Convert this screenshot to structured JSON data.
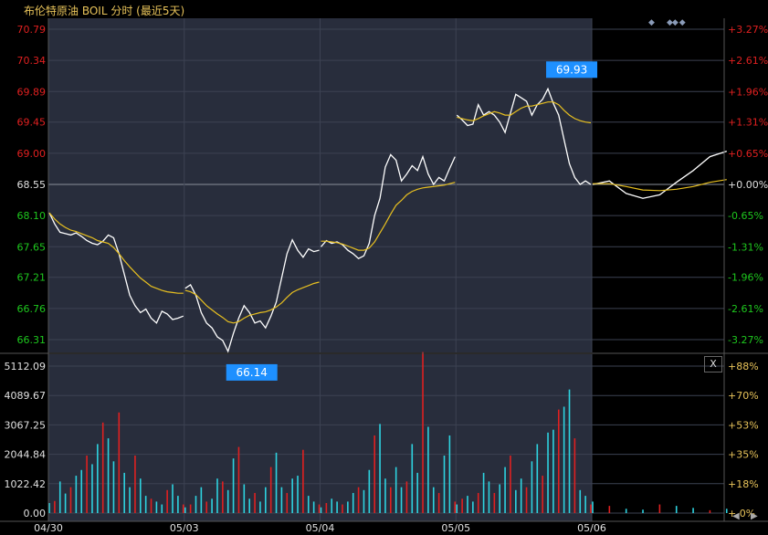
{
  "header": {
    "title": "布伦特原油 BOIL 分时 (最近5天)",
    "nav_left": "◆",
    "nav_right": "◆◆ ◆"
  },
  "controls": {
    "close": "X",
    "scroll_left": "◀",
    "scroll_right": "▶"
  },
  "chart_data": {
    "type": "line",
    "title": "布伦特原油 BOIL 分时 (最近5天)",
    "price_axis": {
      "ticks": [
        70.79,
        70.34,
        69.89,
        69.45,
        69.0,
        68.55,
        68.1,
        67.65,
        67.21,
        66.76,
        66.31
      ],
      "tick_labels": [
        "70.79",
        "70.34",
        "69.89",
        "69.45",
        "69.00",
        "68.55",
        "68.10",
        "67.65",
        "67.21",
        "66.76",
        "66.31"
      ],
      "pct_labels": [
        "+3.27%",
        "+2.61%",
        "+1.96%",
        "+1.31%",
        "+0.65%",
        "+0.00%",
        "-0.65%",
        "-1.31%",
        "-1.96%",
        "-2.61%",
        "-3.27%"
      ],
      "prev_close": 68.55,
      "ylim": [
        66.31,
        70.79
      ]
    },
    "volume_axis": {
      "ticks": [
        5112.09,
        4089.67,
        3067.25,
        2044.84,
        1022.42,
        0.0
      ],
      "tick_labels": [
        "5112.09",
        "4089.67",
        "3067.25",
        "2044.84",
        "1022.42",
        "0.00"
      ],
      "pct_labels": [
        "+88%",
        "+70%",
        "+53%",
        "+35%",
        "+18%",
        "+ 0%"
      ],
      "ylim": [
        0,
        5112.09
      ]
    },
    "days": [
      "04/30",
      "05/03",
      "05/04",
      "05/05",
      "05/06"
    ],
    "annotations": [
      {
        "label": "69.93",
        "day": 3,
        "value": 69.93
      },
      {
        "label": "66.14",
        "day": 1,
        "value": 66.14
      }
    ],
    "series": [
      {
        "day": 0,
        "price": [
          68.14,
          67.98,
          67.86,
          67.84,
          67.82,
          67.85,
          67.8,
          67.74,
          67.7,
          67.68,
          67.73,
          67.82,
          67.78,
          67.55,
          67.25,
          66.95,
          66.8,
          66.7,
          66.75,
          66.62,
          66.55,
          66.72,
          66.68,
          66.6,
          66.62,
          66.65
        ],
        "avg": [
          68.14,
          68.05,
          67.98,
          67.93,
          67.89,
          67.87,
          67.84,
          67.81,
          67.78,
          67.74,
          67.72,
          67.7,
          67.64,
          67.55,
          67.45,
          67.36,
          67.28,
          67.2,
          67.14,
          67.08,
          67.05,
          67.02,
          67.0,
          66.99,
          66.98,
          66.98
        ]
      },
      {
        "day": 1,
        "price": [
          67.05,
          67.1,
          66.95,
          66.7,
          66.55,
          66.48,
          66.35,
          66.3,
          66.14,
          66.4,
          66.62,
          66.8,
          66.7,
          66.55,
          66.58,
          66.48,
          66.65,
          66.85,
          67.2,
          67.55,
          67.75,
          67.6,
          67.5,
          67.62,
          67.58,
          67.6
        ],
        "avg": [
          67.02,
          67.0,
          66.96,
          66.88,
          66.8,
          66.74,
          66.68,
          66.63,
          66.57,
          66.55,
          66.57,
          66.62,
          66.66,
          66.68,
          66.7,
          66.71,
          66.74,
          66.78,
          66.84,
          66.92,
          66.99,
          67.03,
          67.06,
          67.09,
          67.12,
          67.14
        ]
      },
      {
        "day": 2,
        "price": [
          67.65,
          67.74,
          67.7,
          67.72,
          67.68,
          67.6,
          67.55,
          67.48,
          67.52,
          67.7,
          68.1,
          68.35,
          68.8,
          68.98,
          68.9,
          68.6,
          68.7,
          68.82,
          68.75,
          68.95,
          68.7,
          68.55,
          68.65,
          68.6,
          68.78,
          68.95
        ],
        "avg": [
          67.73,
          67.73,
          67.72,
          67.71,
          67.69,
          67.66,
          67.63,
          67.6,
          67.6,
          67.63,
          67.72,
          67.85,
          67.98,
          68.12,
          68.25,
          68.32,
          68.4,
          68.45,
          68.48,
          68.5,
          68.51,
          68.52,
          68.53,
          68.54,
          68.56,
          68.58
        ]
      },
      {
        "day": 3,
        "price": [
          69.55,
          69.48,
          69.4,
          69.42,
          69.7,
          69.55,
          69.6,
          69.55,
          69.45,
          69.3,
          69.58,
          69.85,
          69.8,
          69.75,
          69.55,
          69.7,
          69.78,
          69.93,
          69.72,
          69.55,
          69.2,
          68.85,
          68.65,
          68.55,
          68.6,
          68.55
        ],
        "avg": [
          69.52,
          69.5,
          69.48,
          69.47,
          69.5,
          69.54,
          69.57,
          69.6,
          69.58,
          69.55,
          69.55,
          69.6,
          69.65,
          69.68,
          69.68,
          69.7,
          69.72,
          69.74,
          69.74,
          69.7,
          69.62,
          69.55,
          69.5,
          69.47,
          69.45,
          69.44
        ]
      },
      {
        "day": 4,
        "price": [
          68.55,
          68.6,
          68.42,
          68.35,
          68.4,
          68.58,
          68.75,
          68.95,
          69.03
        ],
        "avg": [
          68.56,
          68.56,
          68.52,
          68.47,
          68.46,
          68.48,
          68.52,
          68.58,
          68.62
        ]
      }
    ],
    "volume": [
      [
        350,
        420,
        1100,
        680,
        900,
        1300,
        1500,
        2000,
        1700,
        2400,
        3150,
        2600,
        1800,
        3500,
        1400,
        900,
        2000,
        1200,
        600,
        500,
        400,
        300,
        800,
        1000,
        600,
        300
      ],
      [
        200,
        300,
        600,
        900,
        400,
        500,
        1200,
        1100,
        800,
        1900,
        2300,
        1000,
        500,
        700,
        400,
        900,
        1600,
        2100,
        900,
        700,
        1200,
        1300,
        2200,
        600,
        400,
        300
      ],
      [
        200,
        350,
        500,
        400,
        300,
        400,
        700,
        900,
        800,
        1500,
        2700,
        3100,
        1200,
        900,
        1600,
        900,
        1100,
        2400,
        1400,
        5600,
        3000,
        900,
        700,
        2000,
        2700,
        400
      ],
      [
        300,
        500,
        600,
        400,
        700,
        1400,
        1100,
        700,
        1000,
        1600,
        2000,
        800,
        1200,
        900,
        1800,
        2400,
        1300,
        2800,
        2900,
        3600,
        3700,
        4300,
        2600,
        800,
        600,
        300
      ],
      [
        400,
        250,
        150,
        120,
        300,
        250,
        180,
        100,
        150
      ]
    ],
    "grid": true,
    "legend": "none"
  }
}
